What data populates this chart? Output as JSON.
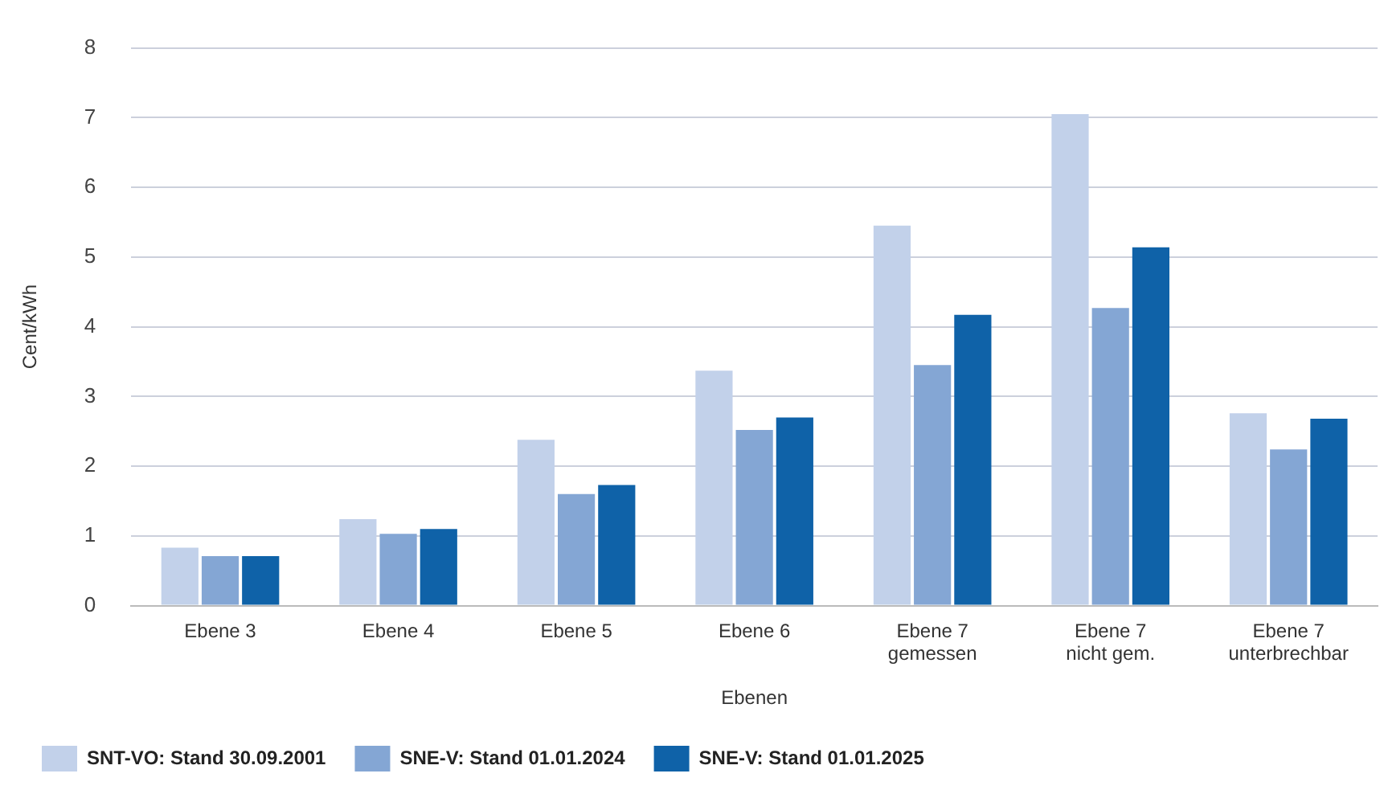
{
  "chart_data": {
    "type": "bar",
    "xlabel": "Ebenen",
    "ylabel": "Cent/kWh",
    "categories": [
      "Ebene 3",
      "Ebene 4",
      "Ebene 5",
      "Ebene 6",
      "Ebene 7\ngemessen",
      "Ebene 7\nnicht gem.",
      "Ebene 7\nunterbrechbar"
    ],
    "series": [
      {
        "name": "SNT-VO: Stand 30.09.2001",
        "color": "#c2d1ea",
        "values": [
          0.83,
          1.24,
          2.38,
          3.37,
          5.45,
          7.05,
          2.76
        ]
      },
      {
        "name": "SNE-V: Stand 01.01.2024",
        "color": "#84a6d4",
        "values": [
          0.71,
          1.03,
          1.6,
          2.52,
          3.45,
          4.27,
          2.24
        ]
      },
      {
        "name": "SNE-V: Stand 01.01.2025",
        "color": "#0f62a8",
        "values": [
          0.71,
          1.1,
          1.73,
          2.7,
          4.17,
          5.14,
          2.68
        ]
      }
    ],
    "ylim": [
      0,
      8
    ],
    "yticks": [
      0,
      1,
      2,
      3,
      4,
      5,
      6,
      7,
      8
    ],
    "grid": "y",
    "legend": "bottom"
  }
}
